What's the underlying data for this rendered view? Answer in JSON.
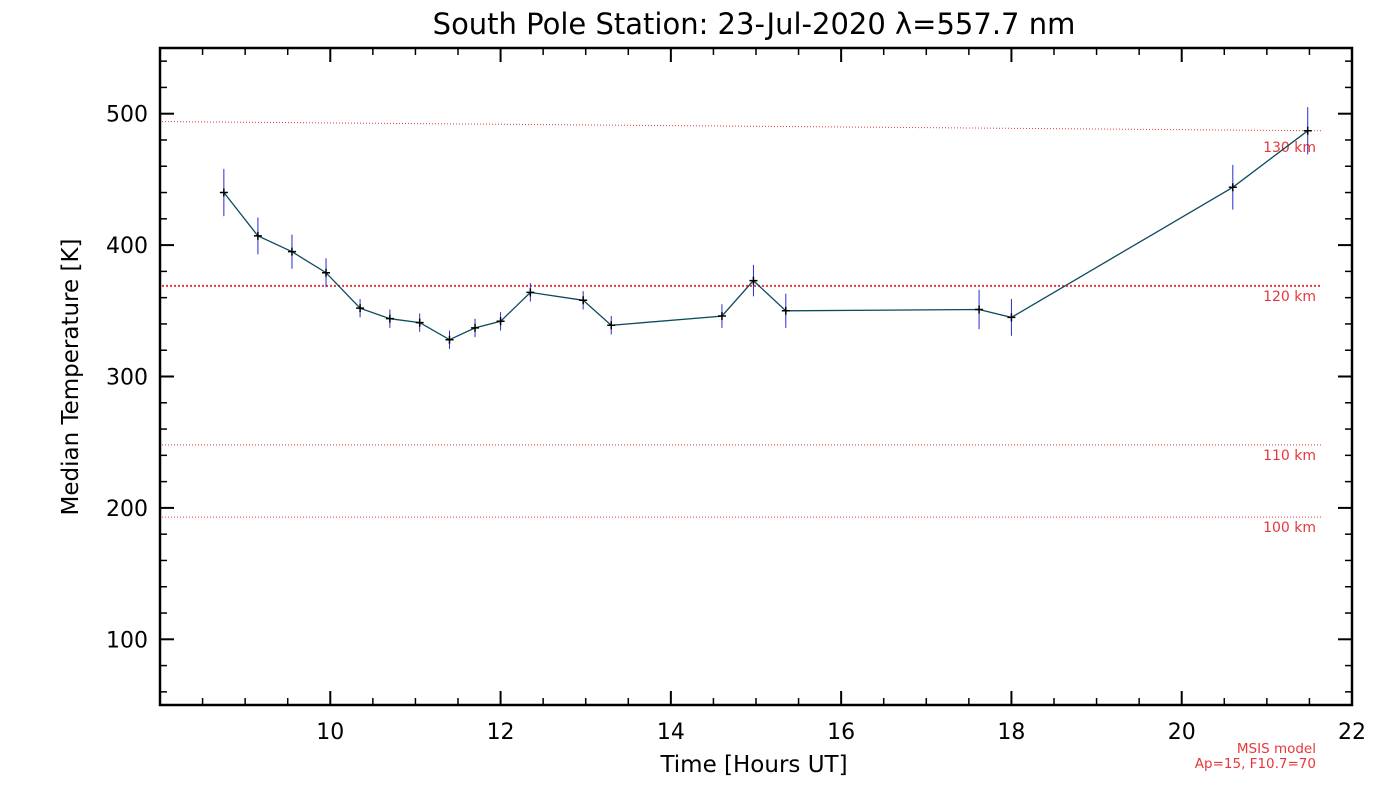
{
  "chart_data": {
    "type": "line",
    "title": "South Pole Station: 23-Jul-2020 λ=557.7 nm",
    "xlabel": "Time [Hours UT]",
    "ylabel": "Median Temperature [K]",
    "xlim": [
      8.0,
      22.0
    ],
    "ylim": [
      50,
      550
    ],
    "x_ticks": [
      10,
      12,
      14,
      16,
      18,
      20,
      22
    ],
    "y_ticks": [
      100,
      200,
      300,
      400,
      500
    ],
    "series": [
      {
        "name": "Median Temperature",
        "color": "#0b4a5e",
        "errorbar_color": "#2a2ad6",
        "points": [
          {
            "x": 8.75,
            "y": 440,
            "err": 18
          },
          {
            "x": 9.15,
            "y": 407,
            "err": 14
          },
          {
            "x": 9.55,
            "y": 395,
            "err": 13
          },
          {
            "x": 9.95,
            "y": 379,
            "err": 11
          },
          {
            "x": 10.35,
            "y": 352,
            "err": 7
          },
          {
            "x": 10.7,
            "y": 344,
            "err": 7
          },
          {
            "x": 11.05,
            "y": 341,
            "err": 7
          },
          {
            "x": 11.4,
            "y": 328,
            "err": 7
          },
          {
            "x": 11.7,
            "y": 337,
            "err": 7
          },
          {
            "x": 12.0,
            "y": 342,
            "err": 7
          },
          {
            "x": 12.35,
            "y": 364,
            "err": 7
          },
          {
            "x": 12.97,
            "y": 358,
            "err": 7
          },
          {
            "x": 13.3,
            "y": 339,
            "err": 7
          },
          {
            "x": 14.6,
            "y": 346,
            "err": 9
          },
          {
            "x": 14.97,
            "y": 373,
            "err": 12
          },
          {
            "x": 15.35,
            "y": 350,
            "err": 13
          },
          {
            "x": 17.62,
            "y": 351,
            "err": 15
          },
          {
            "x": 18.0,
            "y": 345,
            "err": 14
          },
          {
            "x": 20.6,
            "y": 444,
            "err": 17
          },
          {
            "x": 21.48,
            "y": 487,
            "err": 18
          }
        ]
      }
    ],
    "reference_lines": [
      {
        "label": "130 km",
        "y_start": 494,
        "y_end": 487,
        "style": "dotted-thin",
        "color": "#e8373a"
      },
      {
        "label": "120 km",
        "y_start": 369,
        "y_end": 369,
        "style": "dotted-bold",
        "color": "#e8373a"
      },
      {
        "label": "110 km",
        "y_start": 248,
        "y_end": 248,
        "style": "dotted-thin",
        "color": "#e8373a"
      },
      {
        "label": "100 km",
        "y_start": 193,
        "y_end": 193,
        "style": "dotted-thin",
        "color": "#e8373a"
      }
    ],
    "annotations": [
      "MSIS model",
      "Ap=15, F10.7=70"
    ],
    "grid": false
  }
}
